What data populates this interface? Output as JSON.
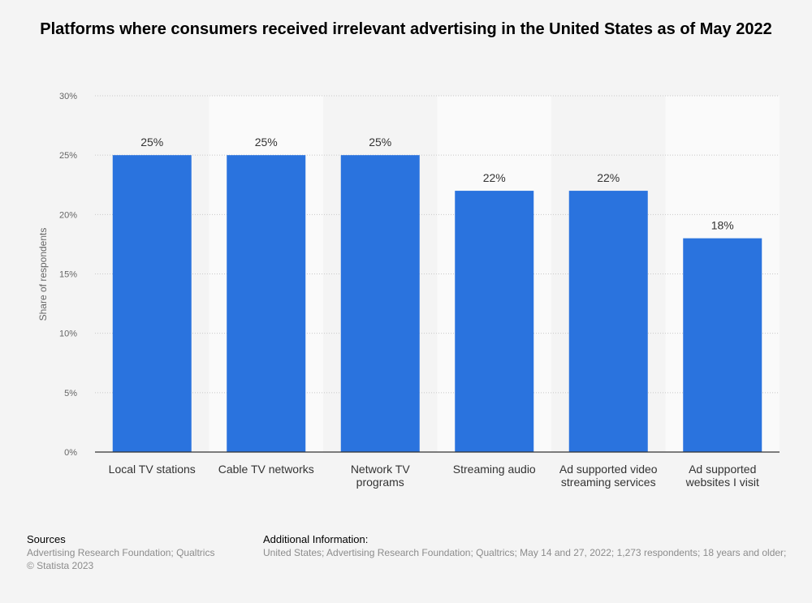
{
  "title": "Platforms where consumers received irrelevant advertising in the United States as of May 2022",
  "chart_data": {
    "type": "bar",
    "categories": [
      [
        "Local TV stations"
      ],
      [
        "Cable TV networks"
      ],
      [
        "Network TV",
        "programs"
      ],
      [
        "Streaming audio"
      ],
      [
        "Ad supported video",
        "streaming services"
      ],
      [
        "Ad supported",
        "websites I visit"
      ]
    ],
    "values": [
      25,
      25,
      25,
      22,
      22,
      18
    ],
    "value_labels": [
      "25%",
      "25%",
      "25%",
      "22%",
      "22%",
      "18%"
    ],
    "ylabel": "Share of respondents",
    "ylim": [
      0,
      30
    ],
    "yticks": [
      0,
      5,
      10,
      15,
      20,
      25,
      30
    ],
    "ytick_labels": [
      "0%",
      "5%",
      "10%",
      "15%",
      "20%",
      "25%",
      "30%"
    ],
    "bar_color": "#2a73de",
    "grid": true
  },
  "footer": {
    "sources_heading": "Sources",
    "sources_text": "Advertising Research Foundation; Qualtrics",
    "copyright": "© Statista 2023",
    "additional_heading": "Additional Information:",
    "additional_text": "United States; Advertising Research Foundation; Qualtrics; May 14 and 27, 2022; 1,273 respondents; 18 years and older;"
  }
}
